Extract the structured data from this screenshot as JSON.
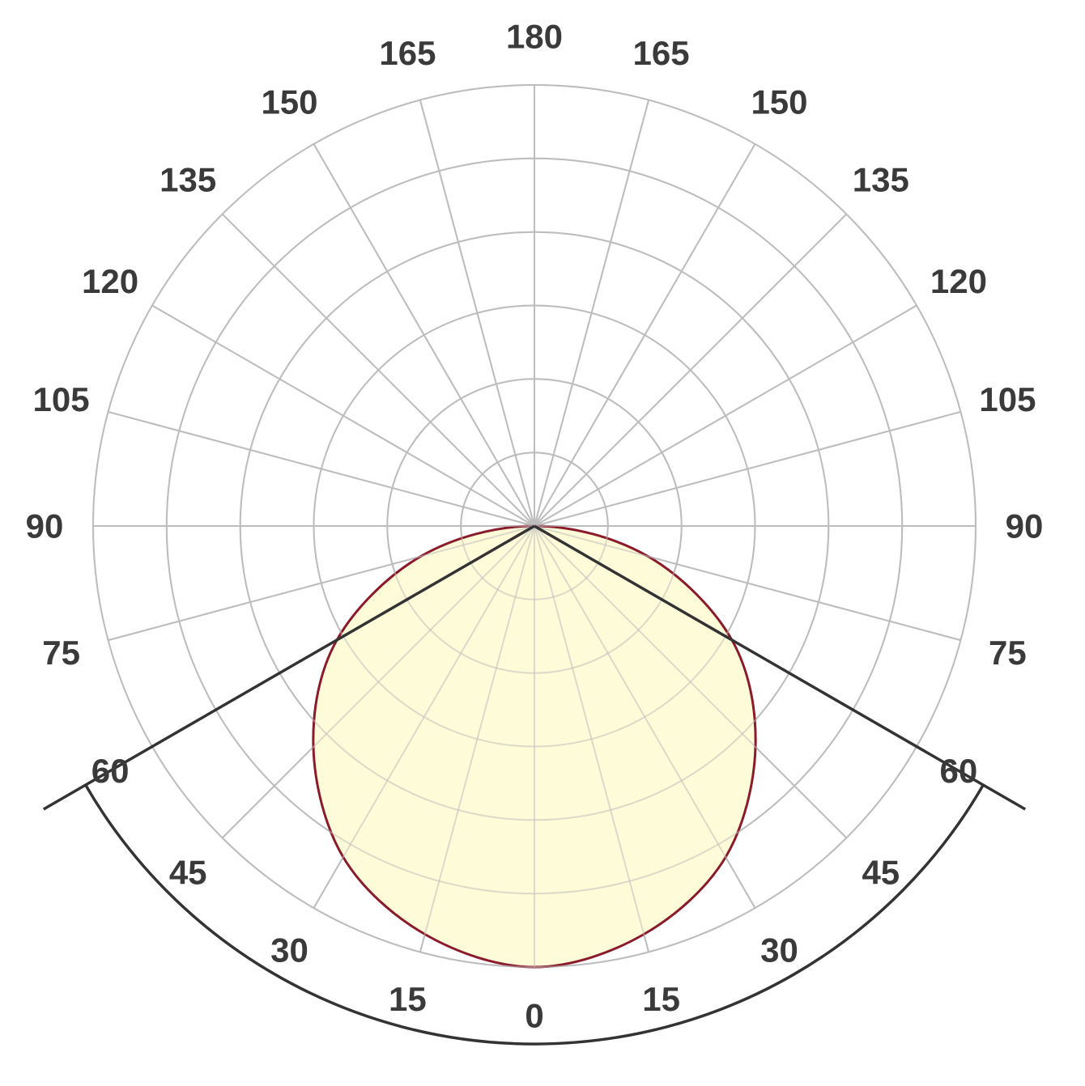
{
  "chart_data": {
    "type": "polar",
    "title": "",
    "angular_axis": {
      "labels_left": [
        "180",
        "165",
        "150",
        "135",
        "120",
        "105",
        "90",
        "75",
        "60",
        "45",
        "30",
        "15",
        "0"
      ],
      "labels_right": [
        "165",
        "150",
        "135",
        "120",
        "105",
        "90",
        "75",
        "60",
        "45",
        "30",
        "15"
      ],
      "angles_left": [
        180,
        165,
        150,
        135,
        120,
        105,
        90,
        75,
        60,
        45,
        30,
        15,
        0
      ],
      "angles_right": [
        165,
        150,
        135,
        120,
        105,
        90,
        75,
        60,
        45,
        30,
        15
      ],
      "step_deg": 15,
      "zero_direction": "down"
    },
    "radial_axis": {
      "rings": 6,
      "range": [
        0,
        6
      ],
      "tick_labels": []
    },
    "grid": true,
    "series": [
      {
        "angles_deg": [
          0,
          15,
          30,
          45,
          60,
          75,
          90
        ],
        "values": [
          6.0,
          5.75,
          5.2,
          4.25,
          3.1,
          1.6,
          0.0
        ],
        "symmetric": true
      }
    ],
    "beam_angle_deg": 120,
    "colors": {
      "curve_stroke": "#8b1a2b",
      "curve_fill": "#fefbd8",
      "grid": "#bdbdbd",
      "beam": "#333333",
      "labels": "#3a3a3a"
    }
  }
}
